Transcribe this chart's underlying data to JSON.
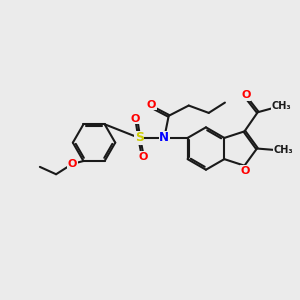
{
  "bg_color": "#ebebeb",
  "bond_color": "#1a1a1a",
  "bond_width": 1.5,
  "atom_colors": {
    "O": "#ff0000",
    "N": "#0000ff",
    "S": "#cccc00",
    "C": "#1a1a1a"
  },
  "figsize": [
    3.0,
    3.0
  ],
  "dpi": 100
}
